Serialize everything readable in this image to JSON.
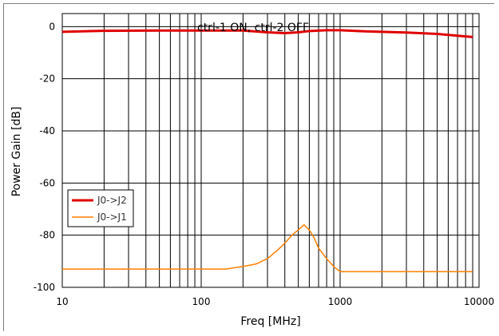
{
  "chart_data": {
    "type": "line",
    "title": "ctrl-1 ON, ctrl-2 OFF",
    "xlabel": "Freq [MHz]",
    "ylabel": "Power Gain [dB]",
    "x_scale": "log",
    "xlim": [
      10,
      10000
    ],
    "ylim": [
      -100,
      5
    ],
    "x_ticks": [
      10,
      100,
      1000,
      10000
    ],
    "x_tick_labels": [
      "10",
      "100",
      "1000",
      "10000"
    ],
    "y_ticks": [
      0,
      -20,
      -40,
      -60,
      -80,
      -100
    ],
    "y_tick_labels": [
      "0",
      "-20",
      "-40",
      "-60",
      "-80",
      "-100"
    ],
    "grid": true,
    "legend_position": "left",
    "series": [
      {
        "name": "J0->J2",
        "color": "#e00000",
        "x": [
          10,
          20,
          50,
          100,
          200,
          300,
          400,
          500,
          600,
          800,
          1000,
          1500,
          2000,
          3000,
          5000,
          7000,
          9000
        ],
        "y": [
          -2.0,
          -1.6,
          -1.5,
          -1.5,
          -1.5,
          -2.2,
          -2.5,
          -2.2,
          -1.7,
          -1.4,
          -1.4,
          -1.8,
          -2.0,
          -2.3,
          -2.8,
          -3.5,
          -4.0
        ]
      },
      {
        "name": "J0->J1",
        "color": "#ff7f00",
        "x": [
          10,
          30,
          100,
          150,
          200,
          250,
          300,
          350,
          400,
          450,
          500,
          550,
          600,
          650,
          700,
          800,
          900,
          1000,
          2000,
          5000,
          9000
        ],
        "y": [
          -93,
          -93,
          -93,
          -93,
          -92,
          -91,
          -89,
          -86,
          -83,
          -80,
          -78,
          -76,
          -78,
          -81,
          -85,
          -89,
          -92,
          -94,
          -94,
          -94,
          -94
        ]
      }
    ]
  }
}
